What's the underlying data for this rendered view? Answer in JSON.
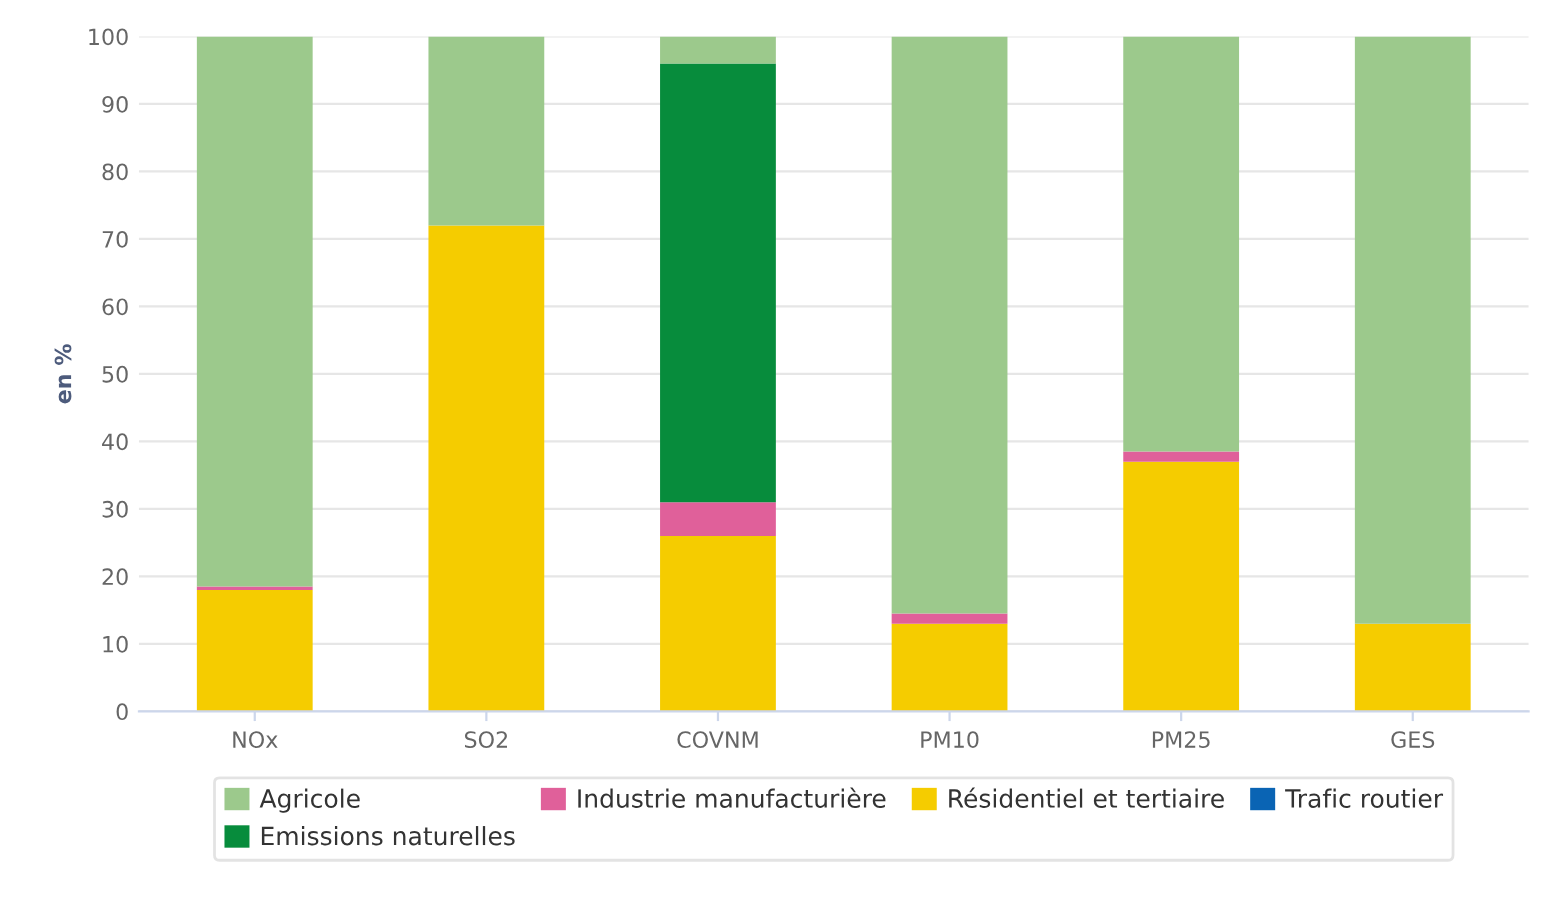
{
  "chart_data": {
    "type": "bar",
    "stacked": true,
    "ylabel": "en %",
    "categories": [
      "NOx",
      "SO2",
      "COVNM",
      "PM10",
      "PM25",
      "GES"
    ],
    "series": [
      {
        "name": "Trafic routier",
        "color": "#0a64b4",
        "values": [
          0,
          0,
          0,
          0,
          0,
          0
        ]
      },
      {
        "name": "Résidentiel et tertiaire",
        "color": "#f5cc00",
        "values": [
          18,
          72,
          26,
          13,
          37,
          13
        ]
      },
      {
        "name": "Industrie manufacturière",
        "color": "#e0609a",
        "values": [
          0.5,
          0,
          5,
          1.5,
          1.5,
          0
        ]
      },
      {
        "name": "Emissions naturelles",
        "color": "#078c3c",
        "values": [
          0,
          0,
          65,
          0,
          0,
          0
        ]
      },
      {
        "name": "Agricole",
        "color": "#9cc98c",
        "values": [
          81.5,
          28,
          4,
          85.5,
          61.5,
          87
        ]
      }
    ],
    "ylim": [
      0,
      100
    ],
    "yticks": [
      0,
      10,
      20,
      30,
      40,
      50,
      60,
      70,
      80,
      90,
      100
    ],
    "grid": "y",
    "legend": "bottom"
  }
}
